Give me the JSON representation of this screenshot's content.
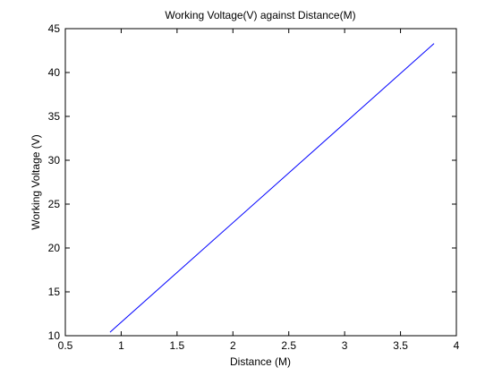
{
  "chart_data": {
    "type": "line",
    "title": "Working Voltage(V) against Distance(M)",
    "xlabel": "Distance (M)",
    "ylabel": "Working Voltage (V)",
    "xlim": [
      0.5,
      4
    ],
    "ylim": [
      10,
      45
    ],
    "xticks": [
      0.5,
      1,
      1.5,
      2,
      2.5,
      3,
      3.5,
      4
    ],
    "xtick_labels": [
      "0.5",
      "1",
      "1.5",
      "2",
      "2.5",
      "3",
      "3.5",
      "4"
    ],
    "yticks": [
      10,
      15,
      20,
      25,
      30,
      35,
      40,
      45
    ],
    "ytick_labels": [
      "10",
      "15",
      "20",
      "25",
      "30",
      "35",
      "40",
      "45"
    ],
    "grid": false,
    "legend": "none",
    "series": [
      {
        "color": "#0000ff",
        "x": [
          0.9,
          3.8
        ],
        "y": [
          10.4,
          43.3
        ]
      }
    ]
  }
}
